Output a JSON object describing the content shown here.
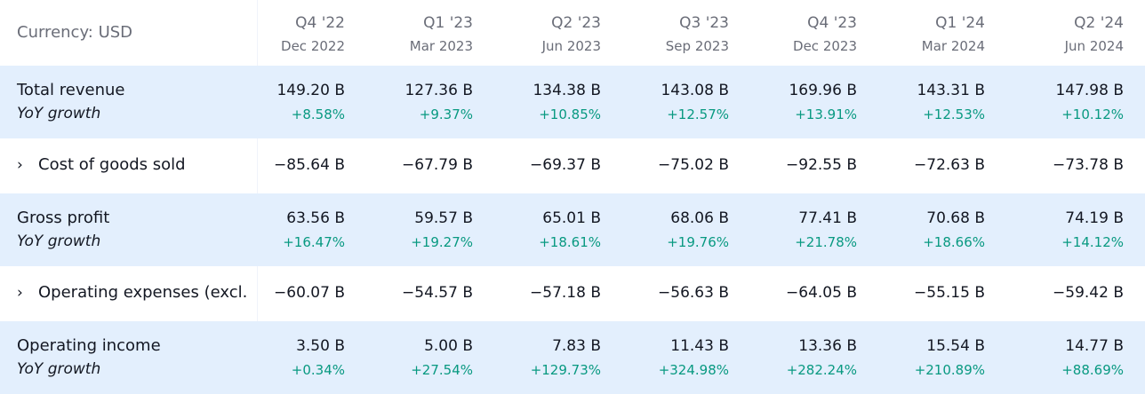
{
  "currency_label": "Currency: USD",
  "periods": [
    {
      "quarter": "Q4 '22",
      "date": "Dec 2022"
    },
    {
      "quarter": "Q1 '23",
      "date": "Mar 2023"
    },
    {
      "quarter": "Q2 '23",
      "date": "Jun 2023"
    },
    {
      "quarter": "Q3 '23",
      "date": "Sep 2023"
    },
    {
      "quarter": "Q4 '23",
      "date": "Dec 2023"
    },
    {
      "quarter": "Q1 '24",
      "date": "Mar 2024"
    },
    {
      "quarter": "Q2 '24",
      "date": "Jun 2024"
    }
  ],
  "rows": [
    {
      "label": "Total revenue",
      "sub_label": "YoY growth",
      "values": [
        "149.20 B",
        "127.36 B",
        "134.38 B",
        "143.08 B",
        "169.96 B",
        "143.31 B",
        "147.98 B"
      ],
      "growth": [
        "+8.58%",
        "+9.37%",
        "+10.85%",
        "+12.57%",
        "+13.91%",
        "+12.53%",
        "+10.12%"
      ]
    },
    {
      "label": "Cost of goods sold",
      "chevron": "›",
      "values": [
        "−85.64 B",
        "−67.79 B",
        "−69.37 B",
        "−75.02 B",
        "−92.55 B",
        "−72.63 B",
        "−73.78 B"
      ]
    },
    {
      "label": "Gross profit",
      "sub_label": "YoY growth",
      "values": [
        "63.56 B",
        "59.57 B",
        "65.01 B",
        "68.06 B",
        "77.41 B",
        "70.68 B",
        "74.19 B"
      ],
      "growth": [
        "+16.47%",
        "+19.27%",
        "+18.61%",
        "+19.76%",
        "+21.78%",
        "+18.66%",
        "+14.12%"
      ]
    },
    {
      "label": "Operating expenses (excl.",
      "chevron": "›",
      "values": [
        "−60.07 B",
        "−54.57 B",
        "−57.18 B",
        "−56.63 B",
        "−64.05 B",
        "−55.15 B",
        "−59.42 B"
      ]
    },
    {
      "label": "Operating income",
      "sub_label": "YoY growth",
      "values": [
        "3.50 B",
        "5.00 B",
        "7.83 B",
        "11.43 B",
        "13.36 B",
        "15.54 B",
        "14.77 B"
      ],
      "growth": [
        "+0.34%",
        "+27.54%",
        "+129.73%",
        "+324.98%",
        "+282.24%",
        "+210.89%",
        "+88.69%"
      ]
    }
  ],
  "colors": {
    "highlight_row": "#e3effd",
    "positive": "#089981",
    "muted_text": "#6a6d78"
  }
}
